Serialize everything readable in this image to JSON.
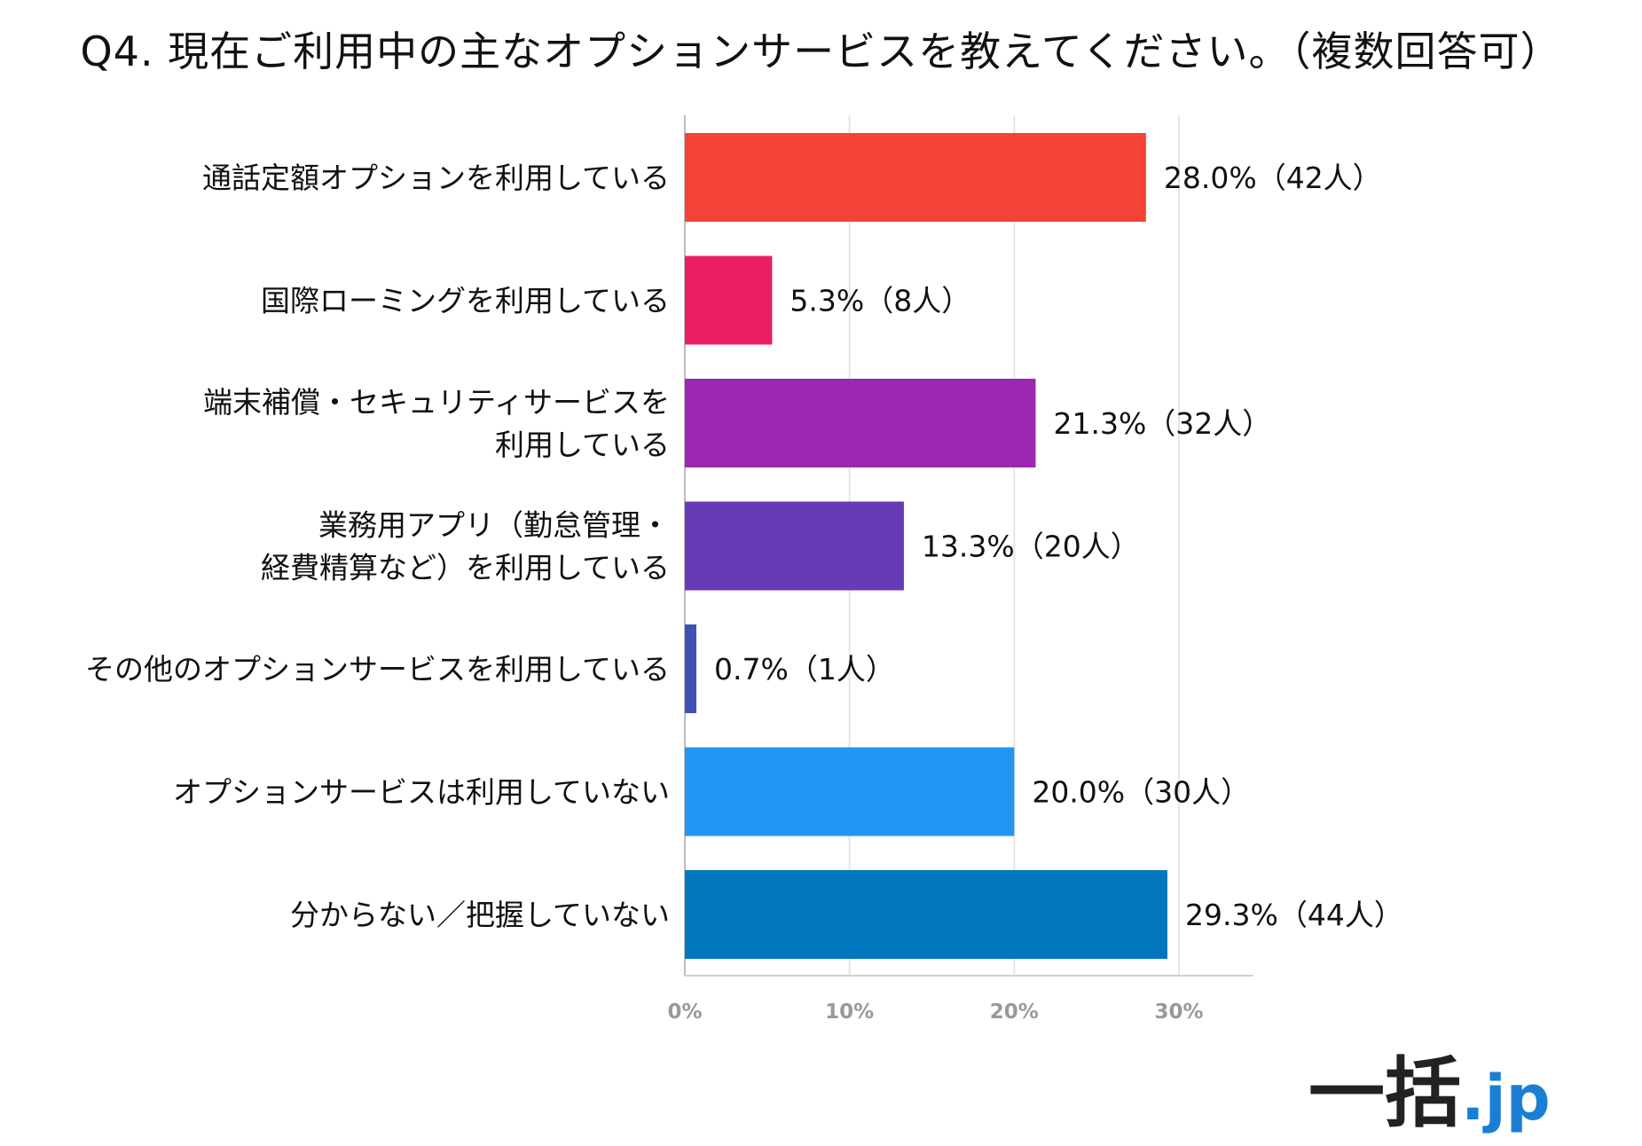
{
  "title": "Q4. 現在ご利用中の主なオプションサービスを教えてください。（複数回答可）",
  "logo": {
    "main": "一括",
    "suffix": ".jp",
    "accent": "#1a7fd4"
  },
  "chart_data": {
    "type": "bar",
    "orientation": "horizontal",
    "categories": [
      [
        "通話定額オプションを利用している"
      ],
      [
        "国際ローミングを利用している"
      ],
      [
        "端末補償・セキュリティサービスを",
        "利用している"
      ],
      [
        "業務用アプリ（勤怠管理・",
        "経費精算など）を利用している"
      ],
      [
        "その他のオプションサービスを利用している"
      ],
      [
        "オプションサービスは利用していない"
      ],
      [
        "分からない／把握していない"
      ]
    ],
    "values": [
      28.0,
      5.3,
      21.3,
      13.3,
      0.7,
      20.0,
      29.3
    ],
    "data_labels": [
      "28.0%（42人）",
      "5.3%（8人）",
      "21.3%（32人）",
      "13.3%（20人）",
      "0.7%（1人）",
      "20.0%（30人）",
      "29.3%（44人）"
    ],
    "colors": [
      "#f44336",
      "#e91e63",
      "#9c27b0",
      "#673ab7",
      "#3f51b5",
      "#2196f3",
      "#0277bd"
    ],
    "xticks": [
      "0%",
      "10%",
      "20%",
      "30%"
    ],
    "xtick_values": [
      0,
      10,
      20,
      30
    ],
    "xlim": [
      0,
      33
    ],
    "grid": true
  }
}
